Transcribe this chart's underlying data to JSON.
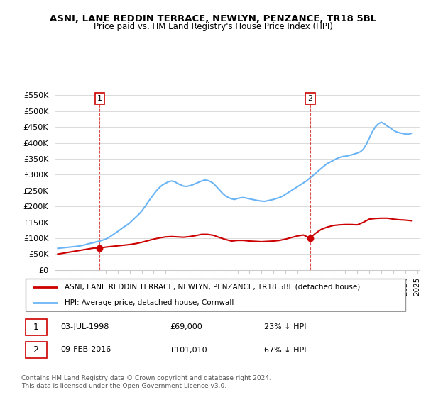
{
  "title": "ASNI, LANE REDDIN TERRACE, NEWLYN, PENZANCE, TR18 5BL",
  "subtitle": "Price paid vs. HM Land Registry's House Price Index (HPI)",
  "legend_line1": "ASNI, LANE REDDIN TERRACE, NEWLYN, PENZANCE, TR18 5BL (detached house)",
  "legend_line2": "HPI: Average price, detached house, Cornwall",
  "transaction1_label": "1",
  "transaction1_date": "03-JUL-1998",
  "transaction1_price": "£69,000",
  "transaction1_hpi": "23% ↓ HPI",
  "transaction2_label": "2",
  "transaction2_date": "09-FEB-2016",
  "transaction2_price": "£101,010",
  "transaction2_hpi": "67% ↓ HPI",
  "footnote1": "Contains HM Land Registry data © Crown copyright and database right 2024.",
  "footnote2": "This data is licensed under the Open Government Licence v3.0.",
  "hpi_color": "#6ab4f5",
  "price_color": "#cc0000",
  "marker_color": "#cc0000",
  "dashed_color": "#cc0000",
  "ylim": [
    0,
    550000
  ],
  "yticks": [
    0,
    50000,
    100000,
    150000,
    200000,
    250000,
    300000,
    350000,
    400000,
    450000,
    500000,
    550000
  ],
  "ytick_labels": [
    "£0",
    "£50K",
    "£100K",
    "£150K",
    "£200K",
    "£250K",
    "£300K",
    "£350K",
    "£400K",
    "£450K",
    "£500K",
    "£550K"
  ],
  "hpi_years": [
    1995.0,
    1995.25,
    1995.5,
    1995.75,
    1996.0,
    1996.25,
    1996.5,
    1996.75,
    1997.0,
    1997.25,
    1997.5,
    1997.75,
    1998.0,
    1998.25,
    1998.5,
    1998.75,
    1999.0,
    1999.25,
    1999.5,
    1999.75,
    2000.0,
    2000.25,
    2000.5,
    2000.75,
    2001.0,
    2001.25,
    2001.5,
    2001.75,
    2002.0,
    2002.25,
    2002.5,
    2002.75,
    2003.0,
    2003.25,
    2003.5,
    2003.75,
    2004.0,
    2004.25,
    2004.5,
    2004.75,
    2005.0,
    2005.25,
    2005.5,
    2005.75,
    2006.0,
    2006.25,
    2006.5,
    2006.75,
    2007.0,
    2007.25,
    2007.5,
    2007.75,
    2008.0,
    2008.25,
    2008.5,
    2008.75,
    2009.0,
    2009.25,
    2009.5,
    2009.75,
    2010.0,
    2010.25,
    2010.5,
    2010.75,
    2011.0,
    2011.25,
    2011.5,
    2011.75,
    2012.0,
    2012.25,
    2012.5,
    2012.75,
    2013.0,
    2013.25,
    2013.5,
    2013.75,
    2014.0,
    2014.25,
    2014.5,
    2014.75,
    2015.0,
    2015.25,
    2015.5,
    2015.75,
    2016.0,
    2016.25,
    2016.5,
    2016.75,
    2017.0,
    2017.25,
    2017.5,
    2017.75,
    2018.0,
    2018.25,
    2018.5,
    2018.75,
    2019.0,
    2019.25,
    2019.5,
    2019.75,
    2020.0,
    2020.25,
    2020.5,
    2020.75,
    2021.0,
    2021.25,
    2021.5,
    2021.75,
    2022.0,
    2022.25,
    2022.5,
    2022.75,
    2023.0,
    2023.25,
    2023.5,
    2023.75,
    2024.0,
    2024.25,
    2024.5
  ],
  "hpi_values": [
    68000,
    69000,
    70000,
    71000,
    72000,
    73000,
    74000,
    75000,
    77000,
    79000,
    82000,
    84000,
    86000,
    89000,
    91000,
    94000,
    97000,
    102000,
    108000,
    115000,
    121000,
    128000,
    135000,
    141000,
    148000,
    157000,
    166000,
    175000,
    185000,
    198000,
    212000,
    225000,
    238000,
    250000,
    260000,
    268000,
    273000,
    278000,
    280000,
    278000,
    272000,
    268000,
    264000,
    263000,
    265000,
    268000,
    272000,
    276000,
    280000,
    283000,
    282000,
    278000,
    272000,
    262000,
    252000,
    241000,
    233000,
    228000,
    224000,
    222000,
    225000,
    227000,
    228000,
    226000,
    224000,
    222000,
    220000,
    218000,
    217000,
    216000,
    218000,
    220000,
    222000,
    225000,
    228000,
    232000,
    238000,
    244000,
    250000,
    256000,
    262000,
    268000,
    274000,
    280000,
    288000,
    296000,
    304000,
    312000,
    320000,
    328000,
    335000,
    340000,
    345000,
    350000,
    354000,
    357000,
    358000,
    360000,
    362000,
    365000,
    368000,
    372000,
    380000,
    395000,
    415000,
    435000,
    450000,
    460000,
    465000,
    460000,
    453000,
    447000,
    440000,
    435000,
    432000,
    430000,
    428000,
    427000,
    430000
  ],
  "transaction1_year": 1998.5,
  "transaction1_value": 69000,
  "transaction2_year": 2016.08,
  "transaction2_value": 101010,
  "price_line_years": [
    1995.0,
    1998.0,
    1998.5,
    1999.0,
    1999.5,
    2000.0,
    2000.5,
    2001.0,
    2001.5,
    2002.0,
    2002.5,
    2003.0,
    2003.5,
    2004.0,
    2004.5,
    2005.0,
    2005.5,
    2006.0,
    2006.5,
    2007.0,
    2007.5,
    2008.0,
    2008.5,
    2009.0,
    2009.5,
    2010.0,
    2010.5,
    2011.0,
    2011.5,
    2012.0,
    2012.5,
    2013.0,
    2013.5,
    2014.0,
    2014.5,
    2015.0,
    2015.5,
    2016.0,
    2016.08,
    2016.5,
    2017.0,
    2017.5,
    2018.0,
    2018.5,
    2019.0,
    2019.5,
    2020.0,
    2020.5,
    2021.0,
    2021.5,
    2022.0,
    2022.5,
    2023.0,
    2023.5,
    2024.0,
    2024.5
  ],
  "price_line_values": [
    50000,
    69000,
    69000,
    72000,
    74000,
    76000,
    78000,
    80000,
    83000,
    87000,
    92000,
    97000,
    101000,
    104000,
    105000,
    104000,
    103000,
    105000,
    108000,
    112000,
    112000,
    109000,
    102000,
    96000,
    91000,
    93000,
    93000,
    91000,
    90000,
    89000,
    90000,
    91000,
    93000,
    97000,
    102000,
    107000,
    110000,
    101010,
    101010,
    115000,
    128000,
    135000,
    140000,
    142000,
    143000,
    143000,
    142000,
    150000,
    160000,
    162000,
    163000,
    163000,
    160000,
    158000,
    157000,
    155000
  ]
}
